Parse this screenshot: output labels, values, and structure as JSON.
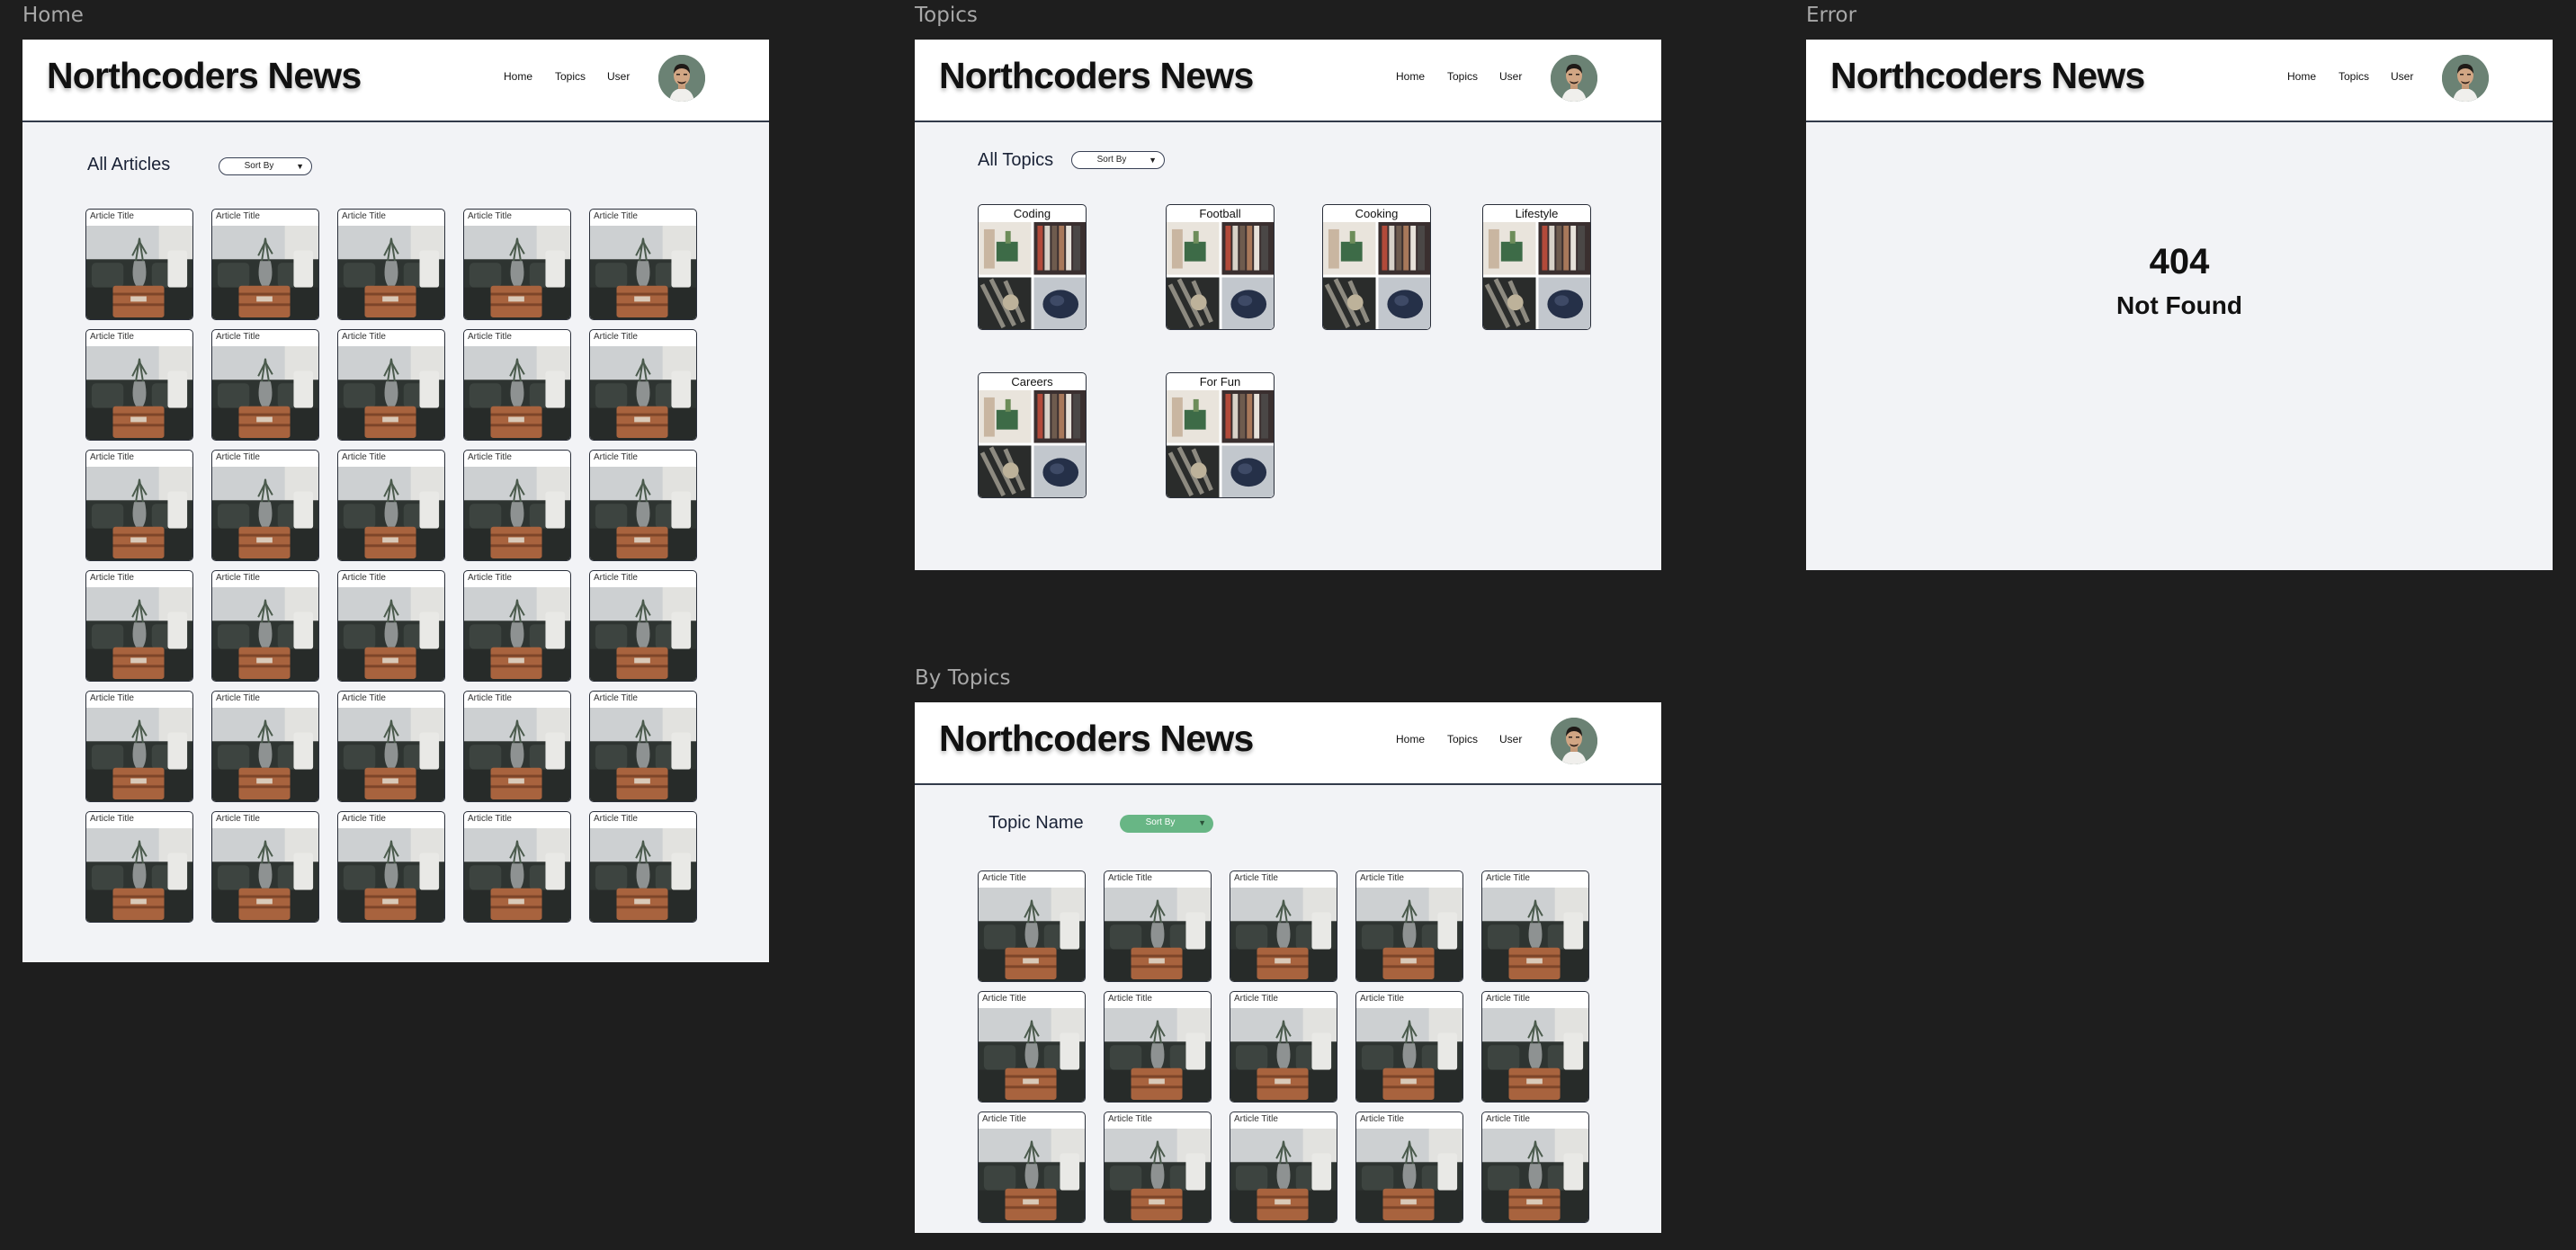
{
  "brand": "Northcoders News",
  "nav": {
    "home": "Home",
    "topics": "Topics",
    "user": "User"
  },
  "sort_label": "Sort By",
  "article_title": "Article  Title",
  "frames": {
    "home": {
      "label": "Home",
      "title": "All Articles"
    },
    "topics": {
      "label": "Topics",
      "title": "All Topics",
      "topics": [
        "Coding",
        "Football",
        "Cooking",
        "Lifestyle",
        "Careers",
        "For Fun"
      ]
    },
    "by_topics": {
      "label": "By Topics",
      "title": "Topic Name"
    },
    "error": {
      "label": "Error",
      "code": "404",
      "message": "Not Found"
    }
  },
  "icons": {
    "dropdown": "caret-down-icon",
    "avatar": "user-avatar-photo"
  },
  "colors": {
    "canvas": "#1e1e1e",
    "page": "#f2f3f6",
    "accent_sort": "#68b685",
    "header_rule": "#323a4a"
  }
}
